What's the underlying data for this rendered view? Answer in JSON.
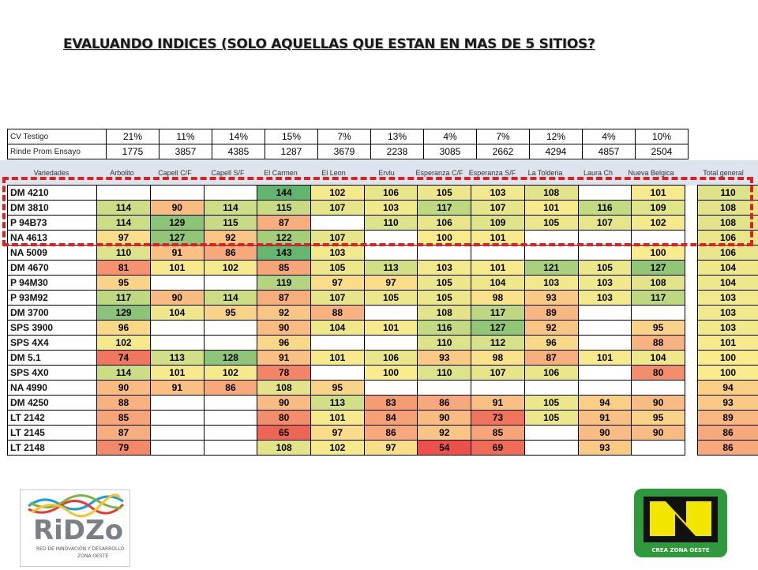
{
  "title": "EVALUANDO INDICES (SOLO AQUELLAS QUE ESTAN EN MAS DE 5 SITIOS?",
  "top_rows": [
    {
      "label": "CV Testigo",
      "values": [
        "21%",
        "11%",
        "14%",
        "15%",
        "7%",
        "13%",
        "4%",
        "7%",
        "12%",
        "4%",
        "10%"
      ]
    },
    {
      "label": "Rinde Prom Ensayo",
      "values": [
        "1775",
        "3857",
        "4385",
        "1287",
        "3679",
        "2238",
        "3085",
        "2662",
        "4294",
        "4857",
        "2504"
      ]
    }
  ],
  "headers": [
    "Variedades",
    "Arbolito",
    "Capell C/F",
    "Capell S/F",
    "El Carmen",
    "El Leon",
    "Ervlu",
    "Esperanza C/F",
    "Esperanza S/F",
    "La Tolderia",
    "Laura Ch",
    "Nueva Belgica",
    "Total general"
  ],
  "rows": [
    {
      "name": "DM 4210",
      "values": [
        "",
        "",
        "",
        "144",
        "102",
        "106",
        "105",
        "103",
        "108",
        "",
        "101"
      ],
      "total": "110"
    },
    {
      "name": "DM 3810",
      "values": [
        "114",
        "90",
        "114",
        "115",
        "107",
        "103",
        "117",
        "107",
        "101",
        "116",
        "109"
      ],
      "total": "108"
    },
    {
      "name": "P 94B73",
      "values": [
        "114",
        "129",
        "115",
        "87",
        "",
        "110",
        "106",
        "109",
        "105",
        "107",
        "102"
      ],
      "total": "108"
    },
    {
      "name": "NA 4613",
      "values": [
        "97",
        "127",
        "92",
        "122",
        "107",
        "",
        "100",
        "101",
        "",
        "",
        ""
      ],
      "total": "106"
    },
    {
      "name": "NA 5009",
      "values": [
        "110",
        "91",
        "86",
        "143",
        "103",
        "",
        "",
        "",
        "",
        "",
        "100"
      ],
      "total": "106"
    },
    {
      "name": "DM 4670",
      "values": [
        "81",
        "101",
        "102",
        "85",
        "105",
        "113",
        "103",
        "101",
        "121",
        "105",
        "127"
      ],
      "total": "104"
    },
    {
      "name": "P 94M30",
      "values": [
        "95",
        "",
        "",
        "119",
        "97",
        "97",
        "105",
        "104",
        "103",
        "103",
        "108"
      ],
      "total": "104"
    },
    {
      "name": "P 93M92",
      "values": [
        "117",
        "90",
        "114",
        "87",
        "107",
        "105",
        "105",
        "98",
        "93",
        "103",
        "117"
      ],
      "total": "103"
    },
    {
      "name": "DM 3700",
      "values": [
        "129",
        "104",
        "95",
        "92",
        "88",
        "",
        "108",
        "117",
        "89",
        "",
        ""
      ],
      "total": "103"
    },
    {
      "name": "SPS 3900",
      "values": [
        "96",
        "",
        "",
        "90",
        "104",
        "101",
        "116",
        "127",
        "92",
        "",
        "95"
      ],
      "total": "103"
    },
    {
      "name": "SPS 4X4",
      "values": [
        "102",
        "",
        "",
        "96",
        "",
        "",
        "110",
        "112",
        "96",
        "",
        "88"
      ],
      "total": "101"
    },
    {
      "name": "DM 5.1",
      "values": [
        "74",
        "113",
        "128",
        "91",
        "101",
        "106",
        "93",
        "98",
        "87",
        "101",
        "104"
      ],
      "total": "100"
    },
    {
      "name": "SPS 4X0",
      "values": [
        "114",
        "101",
        "102",
        "78",
        "",
        "100",
        "110",
        "107",
        "106",
        "",
        "80"
      ],
      "total": "100"
    },
    {
      "name": "NA 4990",
      "values": [
        "90",
        "91",
        "86",
        "108",
        "95",
        "",
        "",
        "",
        "",
        "",
        ""
      ],
      "total": "94"
    },
    {
      "name": "DM 4250",
      "values": [
        "88",
        "",
        "",
        "90",
        "113",
        "83",
        "86",
        "91",
        "105",
        "94",
        "90"
      ],
      "total": "93"
    },
    {
      "name": "LT 2142",
      "values": [
        "85",
        "",
        "",
        "80",
        "101",
        "84",
        "90",
        "73",
        "105",
        "91",
        "95"
      ],
      "total": "89"
    },
    {
      "name": "LT 2145",
      "values": [
        "87",
        "",
        "",
        "65",
        "97",
        "86",
        "92",
        "85",
        "",
        "90",
        "90"
      ],
      "total": "86"
    },
    {
      "name": "LT 2148",
      "values": [
        "79",
        "",
        "",
        "108",
        "102",
        "97",
        "54",
        "69",
        "",
        "93",
        ""
      ],
      "total": "86"
    }
  ],
  "logo_left": {
    "brand": "RiDZo",
    "subtitle_1": "RED DE INNOVACIÓN Y DESARROLLO",
    "subtitle_2": "ZONA OESTE"
  },
  "logo_right": {
    "caption": "CREA ZONA OESTE"
  },
  "colors": {
    "dash": "#e02020",
    "logo_green": "#2e9a3c",
    "logo_yellow": "#f2e500"
  }
}
